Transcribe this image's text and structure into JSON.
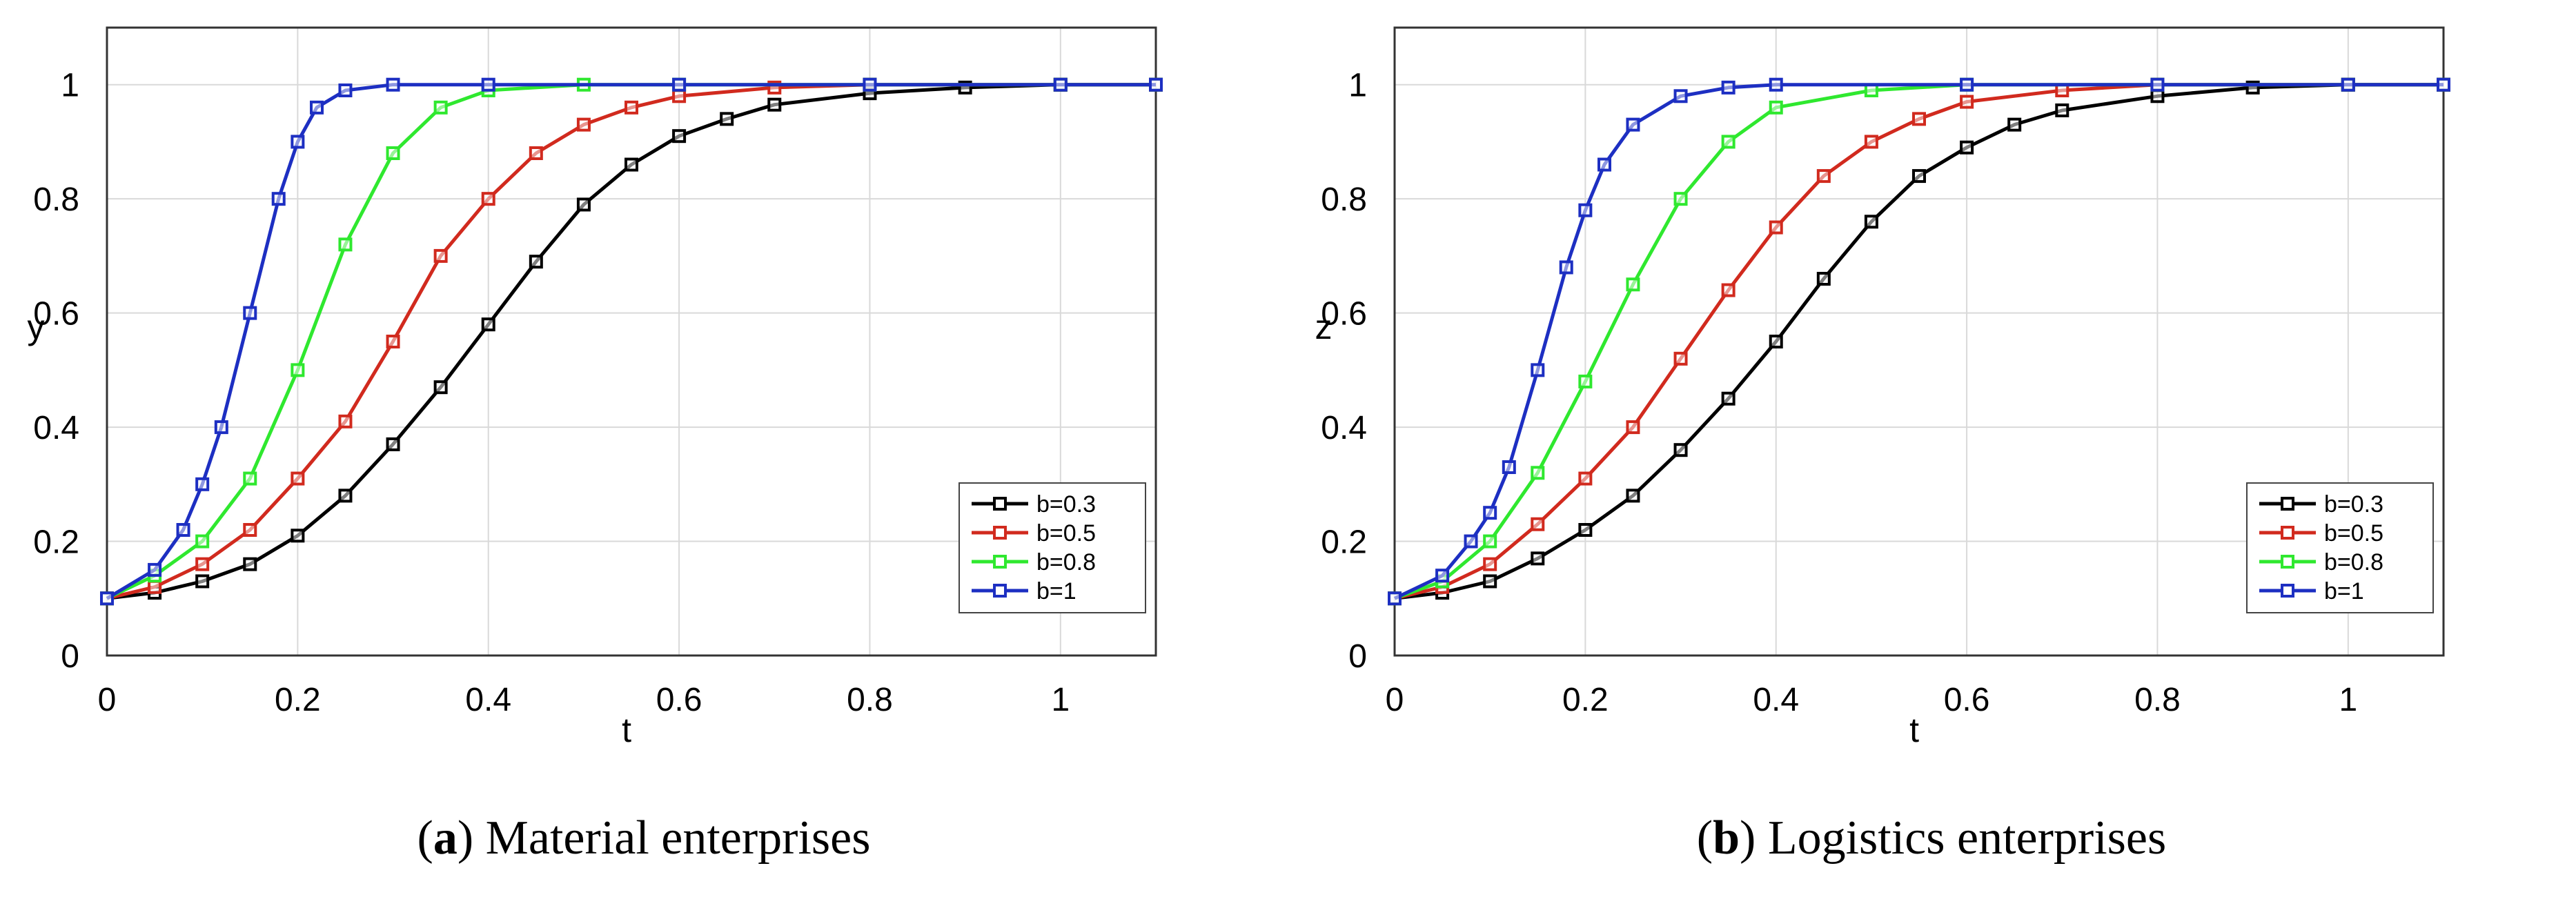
{
  "chart_data": [
    {
      "type": "line",
      "panel_letter": "a",
      "caption": "Material enterprises",
      "xlabel": "t",
      "ylabel": "y",
      "xlim": [
        0,
        1.1
      ],
      "ylim": [
        0,
        1.1
      ],
      "xticks": [
        "0",
        "0.2",
        "0.4",
        "0.6",
        "0.8",
        "1"
      ],
      "yticks": [
        "0",
        "0.2",
        "0.4",
        "0.6",
        "0.8",
        "1"
      ],
      "grid": true,
      "legend_position": "bottom-right",
      "series": [
        {
          "name": "b=0.3",
          "color": "#000000",
          "x": [
            0,
            0.05,
            0.1,
            0.15,
            0.2,
            0.25,
            0.3,
            0.35,
            0.4,
            0.45,
            0.5,
            0.55,
            0.6,
            0.65,
            0.7,
            0.8,
            0.9,
            1.0,
            1.1
          ],
          "y": [
            0.1,
            0.11,
            0.13,
            0.16,
            0.21,
            0.28,
            0.37,
            0.47,
            0.58,
            0.69,
            0.79,
            0.86,
            0.91,
            0.94,
            0.965,
            0.985,
            0.995,
            1.0,
            1.0
          ]
        },
        {
          "name": "b=0.5",
          "color": "#d12a1e",
          "x": [
            0,
            0.05,
            0.1,
            0.15,
            0.2,
            0.25,
            0.3,
            0.35,
            0.4,
            0.45,
            0.5,
            0.55,
            0.6,
            0.7,
            0.8,
            1.0,
            1.1
          ],
          "y": [
            0.1,
            0.12,
            0.16,
            0.22,
            0.31,
            0.41,
            0.55,
            0.7,
            0.8,
            0.88,
            0.93,
            0.96,
            0.98,
            0.995,
            1.0,
            1.0,
            1.0
          ]
        },
        {
          "name": "b=0.8",
          "color": "#2fe82f",
          "x": [
            0,
            0.05,
            0.1,
            0.15,
            0.2,
            0.25,
            0.3,
            0.35,
            0.4,
            0.5,
            0.6,
            0.8,
            1.0,
            1.1
          ],
          "y": [
            0.1,
            0.14,
            0.2,
            0.31,
            0.5,
            0.72,
            0.88,
            0.96,
            0.99,
            1.0,
            1.0,
            1.0,
            1.0,
            1.0
          ]
        },
        {
          "name": "b=1",
          "color": "#1d2fc2",
          "x": [
            0,
            0.05,
            0.08,
            0.1,
            0.12,
            0.15,
            0.18,
            0.2,
            0.22,
            0.25,
            0.3,
            0.4,
            0.6,
            0.8,
            1.0,
            1.1
          ],
          "y": [
            0.1,
            0.15,
            0.22,
            0.3,
            0.4,
            0.6,
            0.8,
            0.9,
            0.96,
            0.99,
            1.0,
            1.0,
            1.0,
            1.0,
            1.0,
            1.0
          ]
        }
      ]
    },
    {
      "type": "line",
      "panel_letter": "b",
      "caption": "Logistics enterprises",
      "xlabel": "t",
      "ylabel": "z",
      "xlim": [
        0,
        1.1
      ],
      "ylim": [
        0,
        1.1
      ],
      "xticks": [
        "0",
        "0.2",
        "0.4",
        "0.6",
        "0.8",
        "1"
      ],
      "yticks": [
        "0",
        "0.2",
        "0.4",
        "0.6",
        "0.8",
        "1"
      ],
      "grid": true,
      "legend_position": "bottom-right",
      "series": [
        {
          "name": "b=0.3",
          "color": "#000000",
          "x": [
            0,
            0.05,
            0.1,
            0.15,
            0.2,
            0.25,
            0.3,
            0.35,
            0.4,
            0.45,
            0.5,
            0.55,
            0.6,
            0.65,
            0.7,
            0.8,
            0.9,
            1.0,
            1.1
          ],
          "y": [
            0.1,
            0.11,
            0.13,
            0.17,
            0.22,
            0.28,
            0.36,
            0.45,
            0.55,
            0.66,
            0.76,
            0.84,
            0.89,
            0.93,
            0.955,
            0.98,
            0.995,
            1.0,
            1.0
          ]
        },
        {
          "name": "b=0.5",
          "color": "#d12a1e",
          "x": [
            0,
            0.05,
            0.1,
            0.15,
            0.2,
            0.25,
            0.3,
            0.35,
            0.4,
            0.45,
            0.5,
            0.55,
            0.6,
            0.7,
            0.8,
            1.0,
            1.1
          ],
          "y": [
            0.1,
            0.12,
            0.16,
            0.23,
            0.31,
            0.4,
            0.52,
            0.64,
            0.75,
            0.84,
            0.9,
            0.94,
            0.97,
            0.99,
            1.0,
            1.0,
            1.0
          ]
        },
        {
          "name": "b=0.8",
          "color": "#2fe82f",
          "x": [
            0,
            0.05,
            0.1,
            0.15,
            0.2,
            0.25,
            0.3,
            0.35,
            0.4,
            0.5,
            0.6,
            0.8,
            1.0,
            1.1
          ],
          "y": [
            0.1,
            0.13,
            0.2,
            0.32,
            0.48,
            0.65,
            0.8,
            0.9,
            0.96,
            0.99,
            1.0,
            1.0,
            1.0,
            1.0
          ]
        },
        {
          "name": "b=1",
          "color": "#1d2fc2",
          "x": [
            0,
            0.05,
            0.08,
            0.1,
            0.12,
            0.15,
            0.18,
            0.2,
            0.22,
            0.25,
            0.3,
            0.35,
            0.4,
            0.6,
            0.8,
            1.0,
            1.1
          ],
          "y": [
            0.1,
            0.14,
            0.2,
            0.25,
            0.33,
            0.5,
            0.68,
            0.78,
            0.86,
            0.93,
            0.98,
            0.995,
            1.0,
            1.0,
            1.0,
            1.0,
            1.0
          ]
        }
      ]
    }
  ]
}
